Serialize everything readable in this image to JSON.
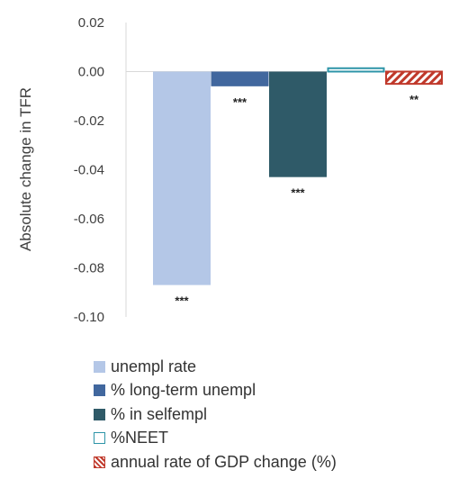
{
  "chart_data": {
    "type": "bar",
    "ylabel": "Absolute change in TFR",
    "ylim": [
      -0.1,
      0.02
    ],
    "yticks": [
      "0.02",
      "0.00",
      "-0.02",
      "-0.04",
      "-0.06",
      "-0.08",
      "-0.10"
    ],
    "ytick_values": [
      0.02,
      0.0,
      -0.02,
      -0.04,
      -0.06,
      -0.08,
      -0.1
    ],
    "grid": false,
    "legend_position": "bottom",
    "series": [
      {
        "name": "unempl rate",
        "value": -0.087,
        "significance": "***",
        "color": "#b4c7e7",
        "pattern": "solid"
      },
      {
        "name": "% long-term unempl",
        "value": -0.006,
        "significance": "***",
        "color": "#41679e",
        "pattern": "solid"
      },
      {
        "name": "% in selfempl",
        "value": -0.043,
        "significance": "***",
        "color": "#2f5a68",
        "pattern": "solid"
      },
      {
        "name": "%NEET",
        "value": 0.001,
        "significance": "",
        "color": "#2e95a8",
        "pattern": "outline"
      },
      {
        "name": "annual rate of GDP change (%)",
        "value": -0.005,
        "significance": "**",
        "color": "#c0392b",
        "pattern": "hatch"
      }
    ]
  }
}
